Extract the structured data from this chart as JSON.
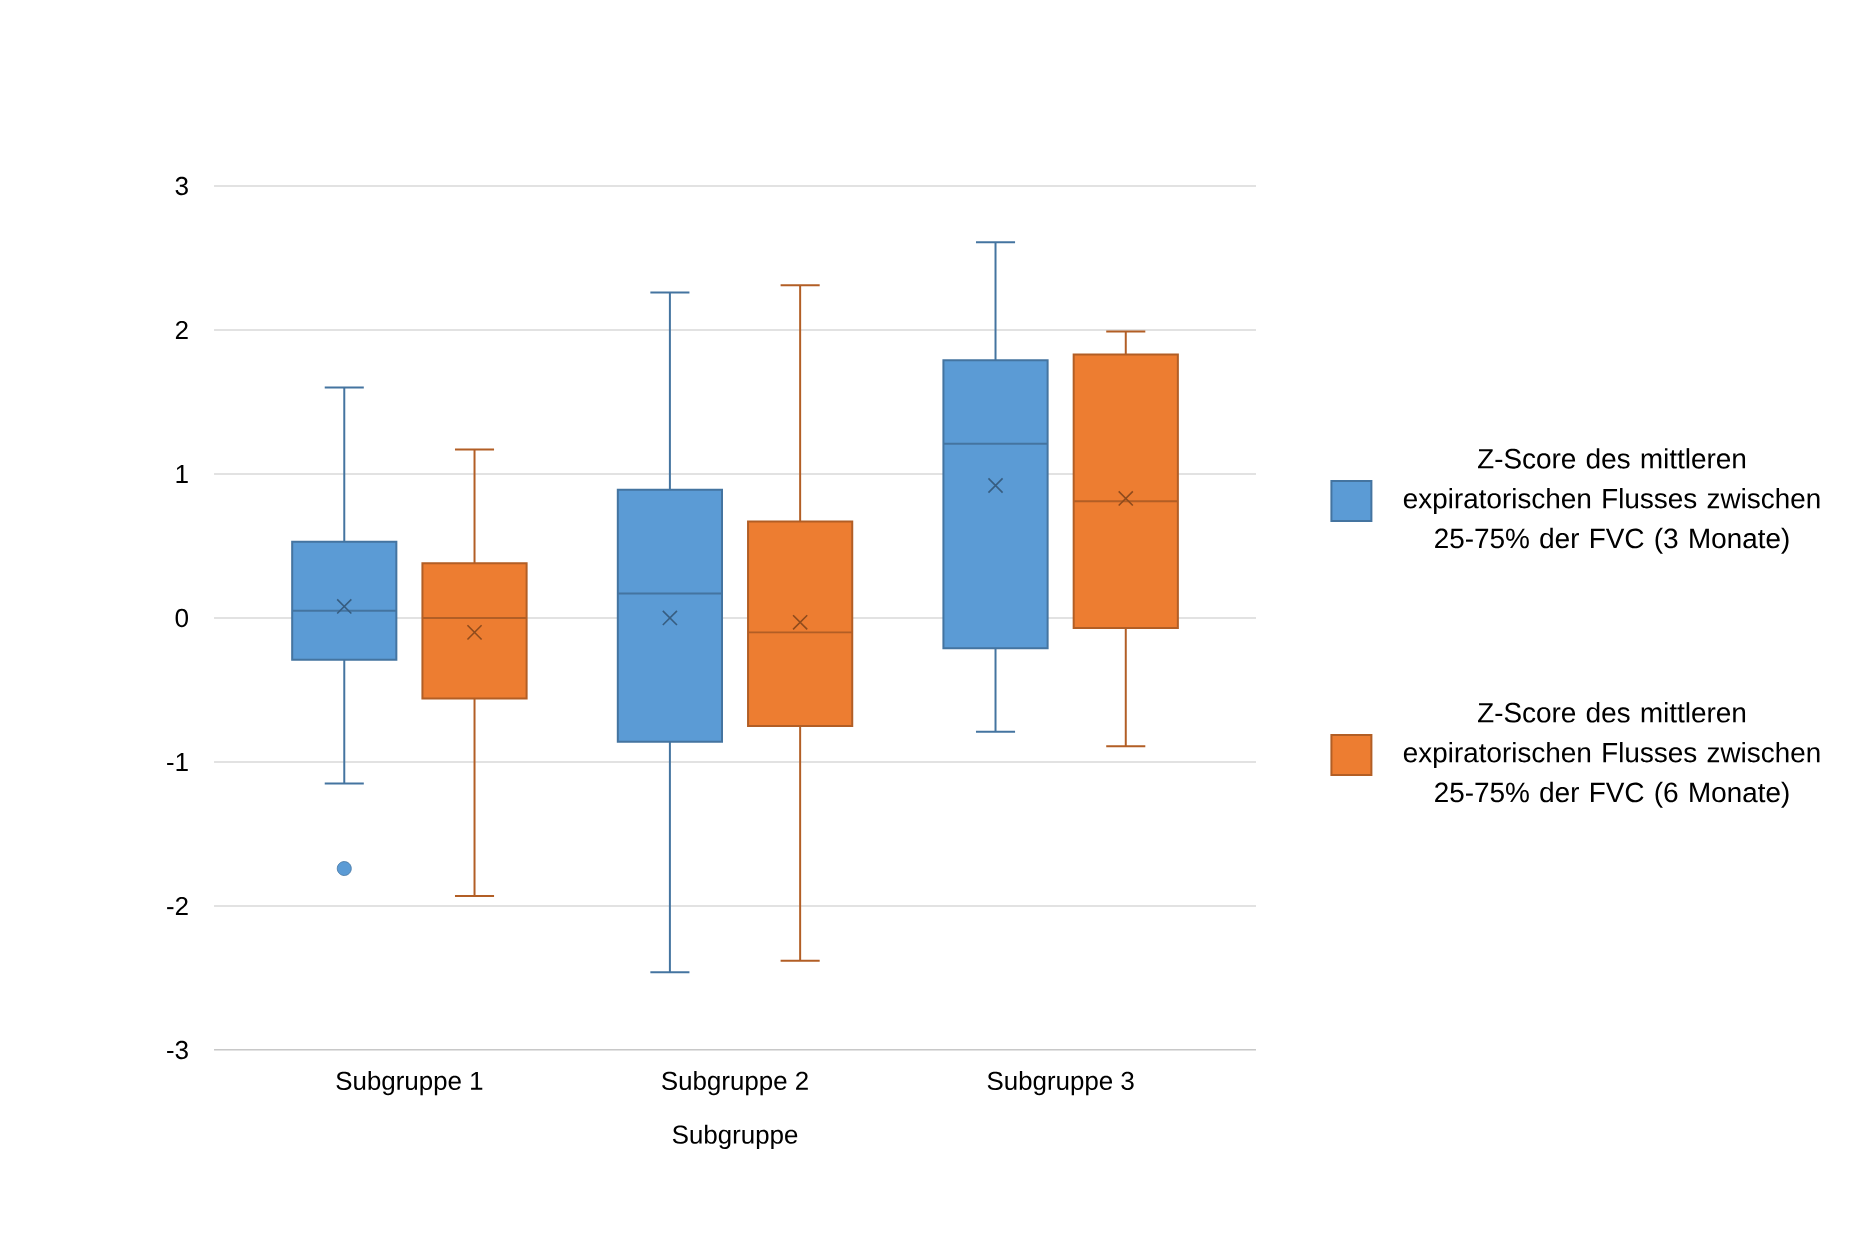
{
  "chart_data": {
    "type": "box",
    "xlabel": "Subgruppe",
    "categories": [
      "Subgruppe 1",
      "Subgruppe 2",
      "Subgruppe 3"
    ],
    "ylim": [
      -3,
      3
    ],
    "yticks": [
      -3,
      -2,
      -1,
      0,
      1,
      2,
      3
    ],
    "grid": "y",
    "legend": "right",
    "marker": "cross",
    "series": [
      {
        "name": "Z-Score des mittleren expiratorischen Flusses zwischen 25-75% der FVC (3 Monate)",
        "color": "#5b9bd5",
        "boxes": [
          {
            "low": -1.15,
            "q1": -0.29,
            "median": 0.05,
            "q3": 0.53,
            "high": 1.6,
            "mean": 0.08,
            "outliers": [
              -1.74
            ]
          },
          {
            "low": -2.46,
            "q1": -0.86,
            "median": 0.17,
            "q3": 0.89,
            "high": 2.26,
            "mean": 0.0
          },
          {
            "low": -0.79,
            "q1": -0.21,
            "median": 1.21,
            "q3": 1.79,
            "high": 2.61,
            "mean": 0.92
          }
        ]
      },
      {
        "name": "Z-Score des mittleren expiratorischen Flusses zwischen 25-75% der FVC (6 Monate)",
        "color": "#ed7d31",
        "boxes": [
          {
            "low": -1.93,
            "q1": -0.56,
            "median": 0.0,
            "q3": 0.38,
            "high": 1.17,
            "mean": -0.1
          },
          {
            "low": -2.38,
            "q1": -0.75,
            "median": -0.1,
            "q3": 0.67,
            "high": 2.31,
            "mean": -0.03
          },
          {
            "low": -0.89,
            "q1": -0.07,
            "median": 0.81,
            "q3": 1.83,
            "high": 1.99,
            "mean": 0.83
          }
        ]
      }
    ]
  }
}
